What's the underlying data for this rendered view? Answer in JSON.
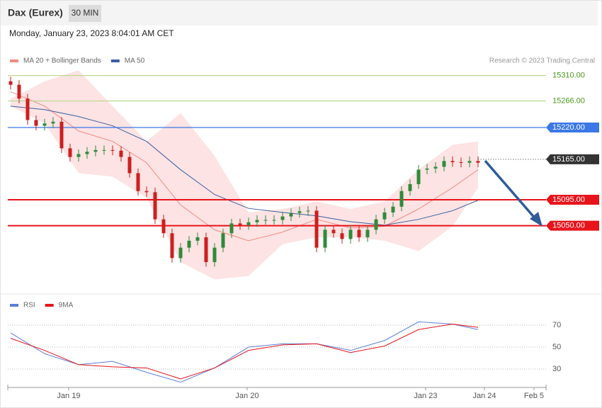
{
  "header": {
    "title": "Dax (Eurex)",
    "interval": "30 MIN",
    "timestamp": "Monday, January 23, 2023 8:04:01 AM CET",
    "credit": "Research © 2023 Trading Central"
  },
  "chart_data": [
    {
      "type": "candlestick",
      "xlim": [
        -0.33,
        63
      ],
      "ylim": [
        14938,
        15426
      ],
      "x": [
        0,
        1,
        2,
        3,
        4,
        5,
        6,
        7,
        8,
        9,
        10,
        11,
        12,
        13,
        14,
        15,
        16,
        17,
        18,
        19,
        20,
        21,
        22,
        23,
        24,
        25,
        26,
        27,
        28,
        29,
        30,
        31,
        32,
        33,
        34,
        35,
        36,
        37,
        38,
        39,
        40,
        41,
        42,
        43,
        44,
        45,
        46,
        47,
        48,
        49,
        50,
        51,
        52,
        53,
        54,
        55
      ],
      "open": [
        15300,
        15294,
        15270,
        15233,
        15223,
        15227,
        15230,
        15184,
        15169,
        15174,
        15178,
        15181,
        15181,
        15180,
        15169,
        15141,
        15110,
        15108,
        15061,
        15037,
        14994,
        15012,
        15024,
        15030,
        14987,
        15012,
        15037,
        15054,
        15051,
        15056,
        15060,
        15060,
        15060,
        15066,
        15072,
        15075,
        15076,
        15012,
        15043,
        15037,
        15027,
        15043,
        15030,
        15043,
        15061,
        15073,
        15083,
        15110,
        15122,
        15147,
        15149,
        15152,
        15162,
        15160,
        15159,
        15162
      ],
      "high": [
        15308,
        15302,
        15278,
        15241,
        15235,
        15238,
        15238,
        15192,
        15182,
        15186,
        15189,
        15189,
        15189,
        15188,
        15177,
        15149,
        15118,
        15116,
        15069,
        15045,
        15020,
        15032,
        15038,
        15038,
        15020,
        15045,
        15062,
        15062,
        15064,
        15068,
        15068,
        15068,
        15074,
        15080,
        15083,
        15084,
        15084,
        15051,
        15051,
        15045,
        15051,
        15051,
        15051,
        15069,
        15081,
        15091,
        15118,
        15130,
        15155,
        15157,
        15160,
        15170,
        15170,
        15168,
        15170,
        15170
      ],
      "low": [
        15286,
        15262,
        15225,
        15215,
        15215,
        15219,
        15176,
        15161,
        15161,
        15166,
        15170,
        15173,
        15172,
        15161,
        15133,
        15102,
        15100,
        15053,
        15029,
        14986,
        14986,
        15004,
        15016,
        14979,
        14979,
        15004,
        15029,
        15043,
        15043,
        15048,
        15052,
        15052,
        15052,
        15058,
        15064,
        15067,
        15004,
        15004,
        15029,
        15019,
        15019,
        15022,
        15022,
        15035,
        15053,
        15065,
        15075,
        15102,
        15114,
        15139,
        15141,
        15144,
        15152,
        15151,
        15151,
        15151
      ],
      "close": [
        15294,
        15270,
        15233,
        15223,
        15227,
        15230,
        15184,
        15169,
        15174,
        15178,
        15181,
        15181,
        15180,
        15169,
        15141,
        15110,
        15108,
        15061,
        15037,
        14994,
        15012,
        15024,
        15030,
        14987,
        15012,
        15037,
        15054,
        15051,
        15056,
        15060,
        15060,
        15060,
        15066,
        15072,
        15075,
        15076,
        15012,
        15043,
        15037,
        15027,
        15043,
        15030,
        15043,
        15061,
        15073,
        15083,
        15110,
        15122,
        15147,
        15149,
        15152,
        15162,
        15160,
        15159,
        15162,
        15159
      ],
      "up_color": "#2e8b3a",
      "down_color": "#cc1f1f",
      "band_color": "#fde3e3",
      "yticks": [
        {
          "value": 15310,
          "label": "15310.00"
        },
        {
          "value": 15266,
          "label": "15266.00"
        },
        {
          "value": 15220,
          "label": "15220.00"
        },
        {
          "value": 15165,
          "label": "15165.00"
        },
        {
          "value": 15095,
          "label": "15095.00"
        },
        {
          "value": 15050,
          "label": "15050.00"
        }
      ],
      "level_colors": [
        "#bcd995",
        "#bcd995",
        "#3b78e7",
        "#333333",
        "#e8141b",
        "#e8141b"
      ],
      "level_boxed": [
        false,
        false,
        true,
        true,
        true,
        true
      ],
      "level_dashed": [
        false,
        false,
        false,
        true,
        false,
        false
      ],
      "series": [
        {
          "name": "MA 20 + Bollinger Bands",
          "color": "#f28b82",
          "x": [
            0,
            4,
            8,
            12,
            16,
            20,
            24,
            28,
            32,
            36,
            40,
            44,
            48,
            52,
            55
          ],
          "values": [
            15282,
            15257,
            15214,
            15196,
            15159,
            15086,
            15043,
            15024,
            15039,
            15061,
            15046,
            15049,
            15079,
            15116,
            15147
          ],
          "upper": [
            15270,
            15300,
            15319,
            15257,
            15196,
            15245,
            15171,
            15073,
            15079,
            15092,
            15079,
            15092,
            15147,
            15190,
            15196
          ],
          "lower": [
            15257,
            15227,
            15141,
            15135,
            15098,
            14987,
            14957,
            14963,
            15018,
            15030,
            15030,
            15024,
            15006,
            15049,
            15116
          ]
        },
        {
          "name": "MA 50",
          "color": "#3a5fa0",
          "x": [
            0,
            4,
            8,
            12,
            16,
            20,
            24,
            28,
            32,
            36,
            40,
            44,
            48,
            52,
            55
          ],
          "values": [
            15257,
            15251,
            15239,
            15223,
            15196,
            15147,
            15104,
            15080,
            15073,
            15067,
            15057,
            15051,
            15061,
            15076,
            15094
          ]
        }
      ]
    },
    {
      "type": "line",
      "xlim": [
        -0.33,
        63
      ],
      "ylim": [
        14.5,
        82.3
      ],
      "yticks": [
        30,
        50,
        70
      ],
      "xticks": [
        {
          "value": 6.83,
          "label": "Jan 19"
        },
        {
          "value": 27.83,
          "label": "Jan 20"
        },
        {
          "value": 48.83,
          "label": "Jan 23"
        },
        {
          "value": 55.75,
          "label": "Jan 24"
        },
        {
          "value": 61.58,
          "label": "Feb 5"
        }
      ],
      "series": [
        {
          "name": "RSI",
          "color": "#5b7fd6",
          "x": [
            0,
            4,
            8,
            12,
            16,
            20,
            24,
            28,
            32,
            36,
            40,
            44,
            48,
            52,
            55
          ],
          "values": [
            63,
            44,
            34,
            37,
            27,
            18,
            31,
            50,
            53,
            53,
            47,
            56,
            73,
            71,
            66
          ]
        },
        {
          "name": "9MA",
          "color": "#e8141b",
          "x": [
            0,
            4,
            8,
            12,
            16,
            20,
            24,
            28,
            32,
            36,
            40,
            44,
            48,
            52,
            55
          ],
          "values": [
            58,
            47,
            34,
            32,
            31,
            21,
            31,
            47,
            52,
            53,
            45,
            51,
            66,
            71,
            68
          ]
        }
      ]
    }
  ]
}
